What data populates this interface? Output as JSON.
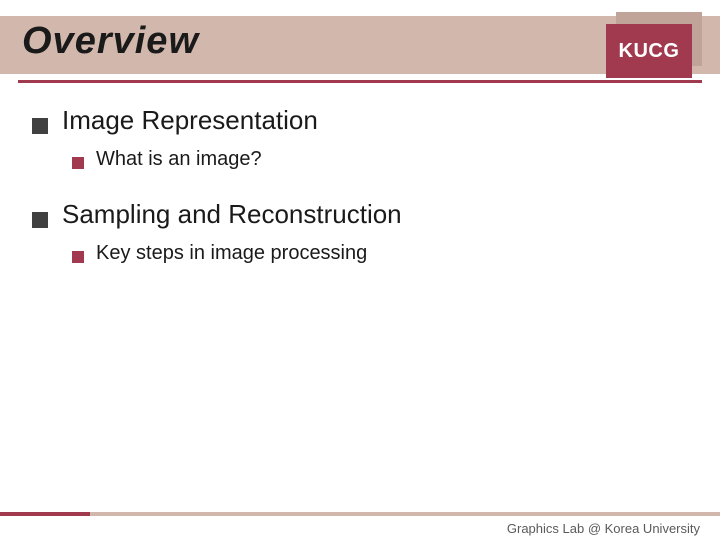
{
  "title": "Overview",
  "badge": "KUCG",
  "sections": [
    {
      "heading": "Image Representation",
      "sub": "What is an image?"
    },
    {
      "heading": "Sampling and Reconstruction",
      "sub": "Key steps in image processing"
    }
  ],
  "footer": "Graphics Lab @ Korea University",
  "colors": {
    "title_bg": "#d2b8ac",
    "accent": "#a23a4f",
    "bullet_dark": "#404040",
    "text": "#1a1a1a",
    "footer_text": "#5a5a5a"
  }
}
